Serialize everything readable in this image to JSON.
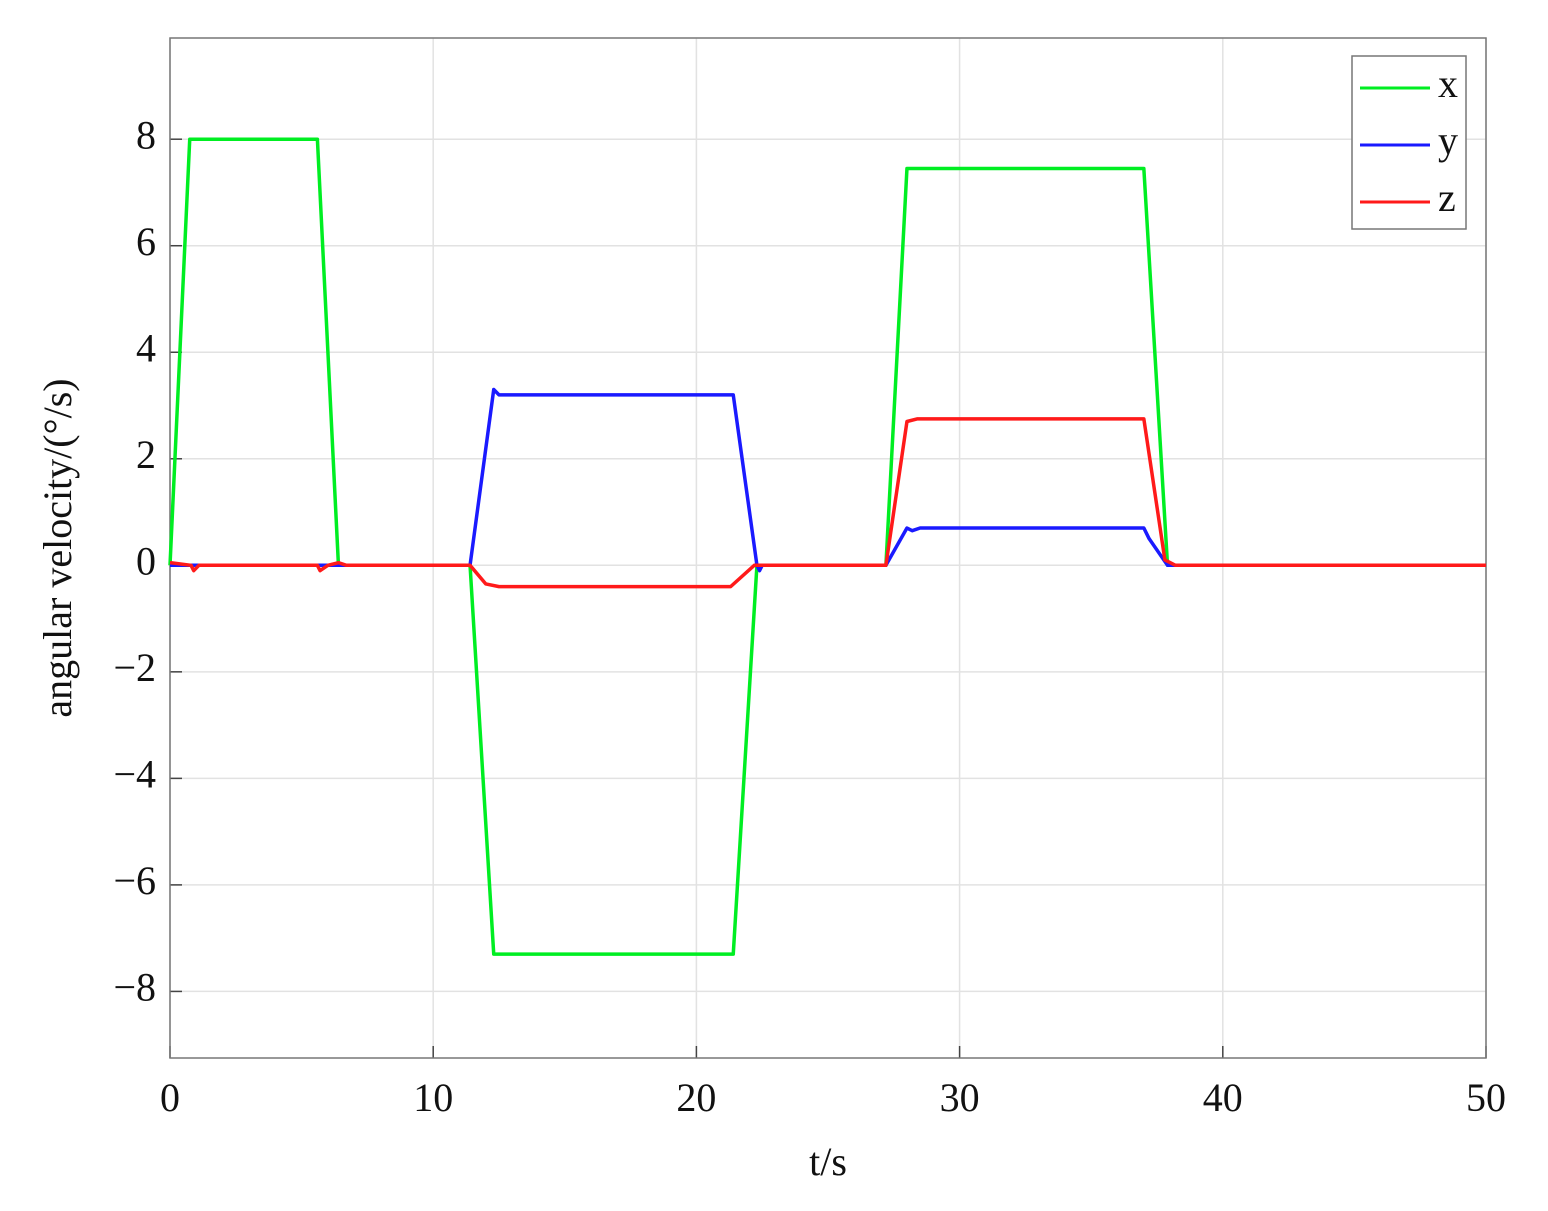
{
  "chart_data": {
    "type": "line",
    "x_label": "t/s",
    "y_label": "angular velocity/(°/s)",
    "xlim": [
      0,
      50
    ],
    "ylim": [
      -9.25,
      9.9
    ],
    "xticks": [
      0,
      10,
      20,
      30,
      40,
      50
    ],
    "yticks": [
      {
        "value": -8,
        "label": "−8"
      },
      {
        "value": -6,
        "label": "−6"
      },
      {
        "value": -4,
        "label": "−4"
      },
      {
        "value": -2,
        "label": "−2"
      },
      0,
      2,
      4,
      6,
      8
    ],
    "grid": true,
    "legend": "top-right",
    "series": [
      {
        "name": "x",
        "color": "#00ee22",
        "x": [
          0,
          0.75,
          5.6,
          6.4,
          11.4,
          12.3,
          21.4,
          22.3,
          27.2,
          28,
          37,
          37.9,
          50
        ],
        "values": [
          0,
          8,
          8,
          0,
          0,
          -7.3,
          -7.3,
          0,
          0,
          7.45,
          7.45,
          0,
          0
        ]
      },
      {
        "name": "y",
        "color": "#1a1aff",
        "x": [
          0,
          11.4,
          12.3,
          12.5,
          21.4,
          22.3,
          22.4,
          22.5,
          27.2,
          28,
          28.2,
          28.5,
          37,
          37.2,
          37.9,
          50
        ],
        "values": [
          0,
          0,
          3.3,
          3.2,
          3.2,
          0,
          -0.1,
          0,
          0,
          0.7,
          0.65,
          0.7,
          0.7,
          0.5,
          0,
          0
        ]
      },
      {
        "name": "z",
        "color": "#ff1a1a",
        "x": [
          0,
          0.8,
          0.9,
          1.1,
          5.6,
          5.7,
          6,
          6.4,
          6.7,
          11.4,
          12,
          12.5,
          21.3,
          22.2,
          27.2,
          28,
          28.4,
          37,
          37.8,
          38.2,
          50
        ],
        "values": [
          0.05,
          0,
          -0.1,
          0,
          0,
          -0.1,
          0,
          0.05,
          0,
          0,
          -0.35,
          -0.4,
          -0.4,
          0,
          0,
          2.7,
          2.75,
          2.75,
          0.1,
          0,
          0
        ]
      }
    ]
  }
}
